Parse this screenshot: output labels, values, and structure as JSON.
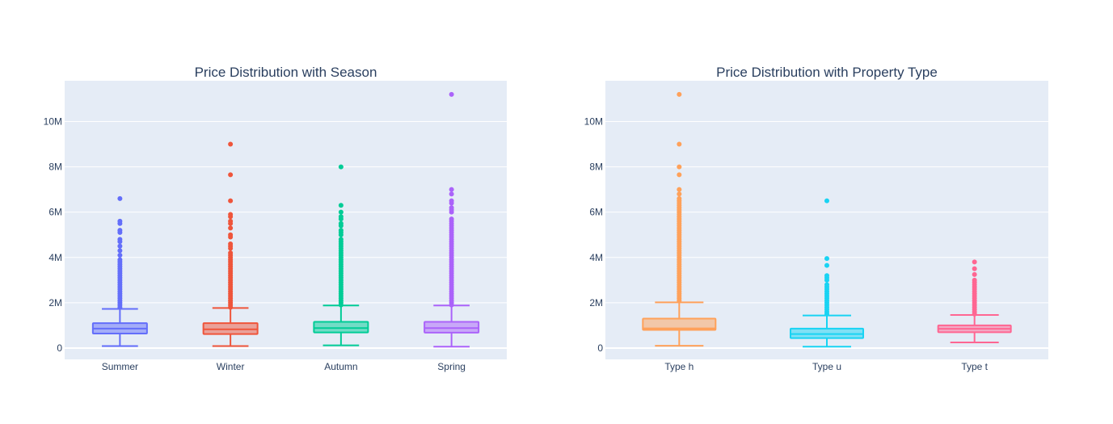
{
  "chart_data": [
    {
      "type": "box",
      "title": "Price Distribution with Season",
      "xlabel": "",
      "ylabel": "",
      "ylim": [
        -500000,
        11800000
      ],
      "y_ticks": [
        {
          "value": 0,
          "label": "0"
        },
        {
          "value": 2000000,
          "label": "2M"
        },
        {
          "value": 4000000,
          "label": "4M"
        },
        {
          "value": 6000000,
          "label": "6M"
        },
        {
          "value": 8000000,
          "label": "8M"
        },
        {
          "value": 10000000,
          "label": "10M"
        }
      ],
      "grid": true,
      "plot_bgcolor": "#E5ECF6",
      "categories": [
        "Summer",
        "Winter",
        "Autumn",
        "Spring"
      ],
      "boxes": [
        {
          "category": "Summer",
          "color": "#636EFA",
          "min": 90000,
          "q1": 640000,
          "median": 860000,
          "q3": 1100000,
          "upper_fence": 1730000,
          "outliers": [
            1800000,
            1900000,
            2000000,
            2100000,
            2200000,
            2300000,
            2400000,
            2500000,
            2600000,
            2700000,
            2800000,
            2900000,
            3000000,
            3100000,
            3200000,
            3300000,
            3400000,
            3500000,
            3600000,
            3700000,
            3800000,
            3900000,
            4100000,
            4300000,
            4500000,
            4700000,
            4800000,
            5100000,
            5200000,
            5500000,
            5600000,
            6600000
          ]
        },
        {
          "category": "Winter",
          "color": "#EF553B",
          "min": 90000,
          "q1": 620000,
          "median": 830000,
          "q3": 1100000,
          "upper_fence": 1770000,
          "outliers": [
            1800000,
            1900000,
            2000000,
            2100000,
            2200000,
            2300000,
            2400000,
            2500000,
            2600000,
            2700000,
            2800000,
            2900000,
            3000000,
            3100000,
            3200000,
            3300000,
            3400000,
            3500000,
            3600000,
            3700000,
            3800000,
            3900000,
            4000000,
            4100000,
            4200000,
            4400000,
            4500000,
            4600000,
            4900000,
            5000000,
            5300000,
            5500000,
            5600000,
            5800000,
            5900000,
            6500000,
            7650000,
            9000000
          ]
        },
        {
          "category": "Autumn",
          "color": "#00CC96",
          "min": 120000,
          "q1": 690000,
          "median": 880000,
          "q3": 1160000,
          "upper_fence": 1880000,
          "outliers": [
            1900000,
            2000000,
            2100000,
            2200000,
            2300000,
            2400000,
            2500000,
            2600000,
            2700000,
            2800000,
            2900000,
            3000000,
            3100000,
            3200000,
            3300000,
            3400000,
            3500000,
            3600000,
            3700000,
            3800000,
            3900000,
            4000000,
            4100000,
            4200000,
            4300000,
            4400000,
            4500000,
            4600000,
            4700000,
            4800000,
            5000000,
            5100000,
            5200000,
            5400000,
            5500000,
            5700000,
            5800000,
            6000000,
            6300000,
            8000000
          ]
        },
        {
          "category": "Spring",
          "color": "#AB63FA",
          "min": 60000,
          "q1": 680000,
          "median": 880000,
          "q3": 1160000,
          "upper_fence": 1880000,
          "outliers": [
            1900000,
            2000000,
            2100000,
            2200000,
            2300000,
            2400000,
            2500000,
            2600000,
            2700000,
            2800000,
            2900000,
            3000000,
            3100000,
            3200000,
            3300000,
            3400000,
            3500000,
            3600000,
            3700000,
            3800000,
            3900000,
            4000000,
            4100000,
            4200000,
            4300000,
            4400000,
            4500000,
            4600000,
            4700000,
            4800000,
            4900000,
            5000000,
            5100000,
            5200000,
            5300000,
            5400000,
            5500000,
            5600000,
            5700000,
            6000000,
            6100000,
            6200000,
            6400000,
            6500000,
            6800000,
            7000000,
            11200000
          ]
        }
      ]
    },
    {
      "type": "box",
      "title": "Price Distribution with Property Type",
      "xlabel": "",
      "ylabel": "",
      "ylim": [
        -500000,
        11800000
      ],
      "y_ticks": [
        {
          "value": 0,
          "label": "0"
        },
        {
          "value": 2000000,
          "label": "2M"
        },
        {
          "value": 4000000,
          "label": "4M"
        },
        {
          "value": 6000000,
          "label": "6M"
        },
        {
          "value": 8000000,
          "label": "8M"
        },
        {
          "value": 10000000,
          "label": "10M"
        }
      ],
      "grid": true,
      "plot_bgcolor": "#E5ECF6",
      "categories": [
        "Type h",
        "Type u",
        "Type t"
      ],
      "boxes": [
        {
          "category": "Type h",
          "color": "#FFA15A",
          "min": 100000,
          "q1": 800000,
          "median": 870000,
          "q3": 1300000,
          "upper_fence": 2020000,
          "outliers": [
            2100000,
            2200000,
            2300000,
            2400000,
            2500000,
            2600000,
            2700000,
            2800000,
            2900000,
            3000000,
            3100000,
            3200000,
            3300000,
            3400000,
            3500000,
            3600000,
            3700000,
            3800000,
            3900000,
            4000000,
            4100000,
            4200000,
            4300000,
            4400000,
            4500000,
            4600000,
            4700000,
            4800000,
            4900000,
            5000000,
            5100000,
            5200000,
            5300000,
            5400000,
            5500000,
            5600000,
            5700000,
            5800000,
            5900000,
            6000000,
            6100000,
            6200000,
            6300000,
            6400000,
            6500000,
            6600000,
            6800000,
            7000000,
            7650000,
            8000000,
            9000000,
            11200000
          ]
        },
        {
          "category": "Type u",
          "color": "#19D3F3",
          "min": 60000,
          "q1": 440000,
          "median": 620000,
          "q3": 860000,
          "upper_fence": 1440000,
          "outliers": [
            1500000,
            1600000,
            1700000,
            1800000,
            1900000,
            2000000,
            2100000,
            2200000,
            2300000,
            2400000,
            2500000,
            2600000,
            2700000,
            2800000,
            3000000,
            3100000,
            3200000,
            3650000,
            3950000,
            6500000
          ]
        },
        {
          "category": "Type t",
          "color": "#FF6692",
          "min": 250000,
          "q1": 700000,
          "median": 850000,
          "q3": 1000000,
          "upper_fence": 1460000,
          "outliers": [
            1500000,
            1600000,
            1700000,
            1800000,
            1900000,
            2000000,
            2100000,
            2200000,
            2300000,
            2400000,
            2500000,
            2600000,
            2700000,
            2800000,
            2900000,
            3000000,
            3250000,
            3500000,
            3800000
          ]
        }
      ]
    }
  ]
}
